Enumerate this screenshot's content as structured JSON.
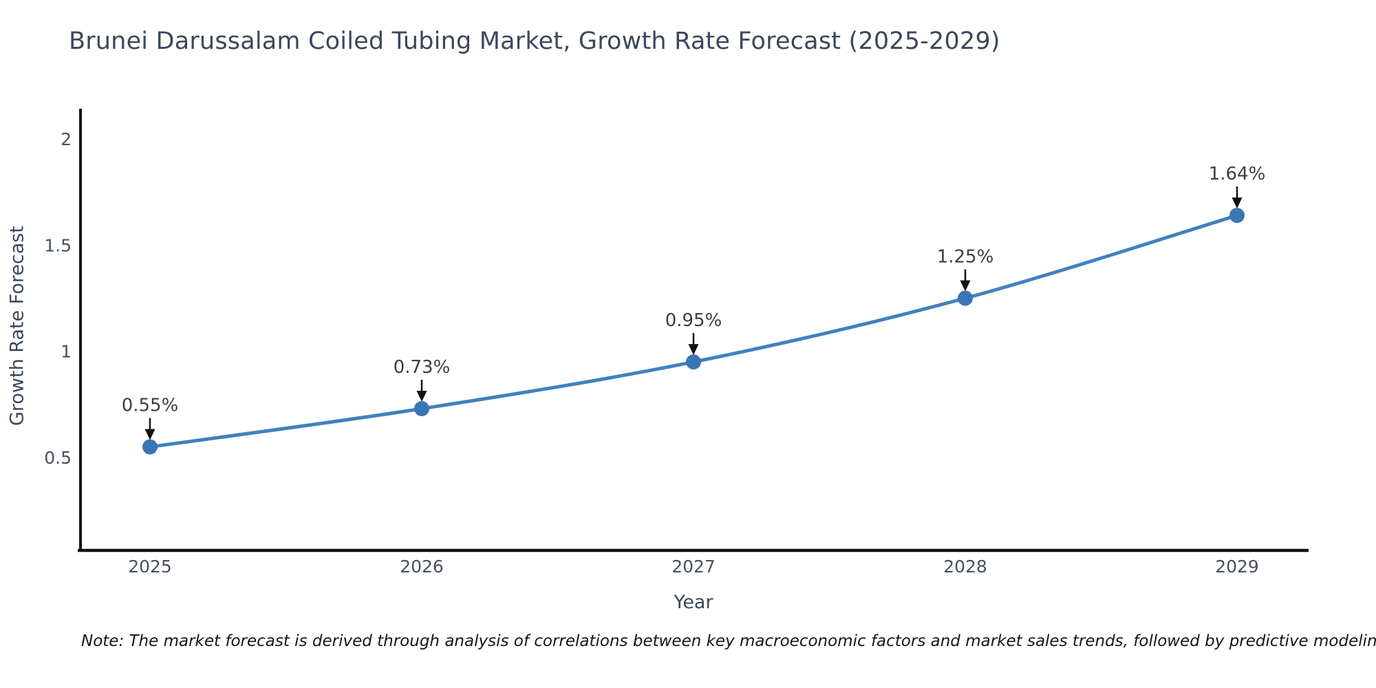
{
  "header": {
    "title": "Brunei Darussalam Coiled Tubing Market, Growth Rate Forecast (2025-2029)"
  },
  "chart_data": {
    "type": "line",
    "title": "Brunei Darussalam Coiled Tubing Market, Growth Rate Forecast (2025-2029)",
    "xlabel": "Year",
    "ylabel": "Growth Rate Forecast",
    "x": [
      2025,
      2026,
      2027,
      2028,
      2029
    ],
    "values": [
      0.55,
      0.73,
      0.95,
      1.25,
      1.64
    ],
    "point_labels": [
      "0.55%",
      "0.73%",
      "0.95%",
      "1.25%",
      "1.64%"
    ],
    "x_tick_labels": [
      "2025",
      "2026",
      "2027",
      "2028",
      "2029"
    ],
    "y_ticks": [
      0.5,
      1,
      1.5,
      2
    ],
    "y_tick_labels": [
      "0.5",
      "1",
      "1.5",
      "2"
    ],
    "line_shape": "spline",
    "grid": false,
    "legend_position": "none",
    "axis_ranges": {
      "x": [
        2024.74,
        2029.26
      ],
      "y": [
        0.06,
        2.14
      ]
    },
    "colors": {
      "line": "#4181bd",
      "marker": "#3a76b4",
      "axis": "#111111",
      "tick_text": "#47505f",
      "annotation_text": "#3a3f46",
      "arrow": "#111111",
      "background": "#ffffff"
    }
  },
  "footnote": "Note: The market forecast is derived through analysis of correlations between key macroeconomic factors and market sales trends, followed by predictive modeling to project future sales"
}
